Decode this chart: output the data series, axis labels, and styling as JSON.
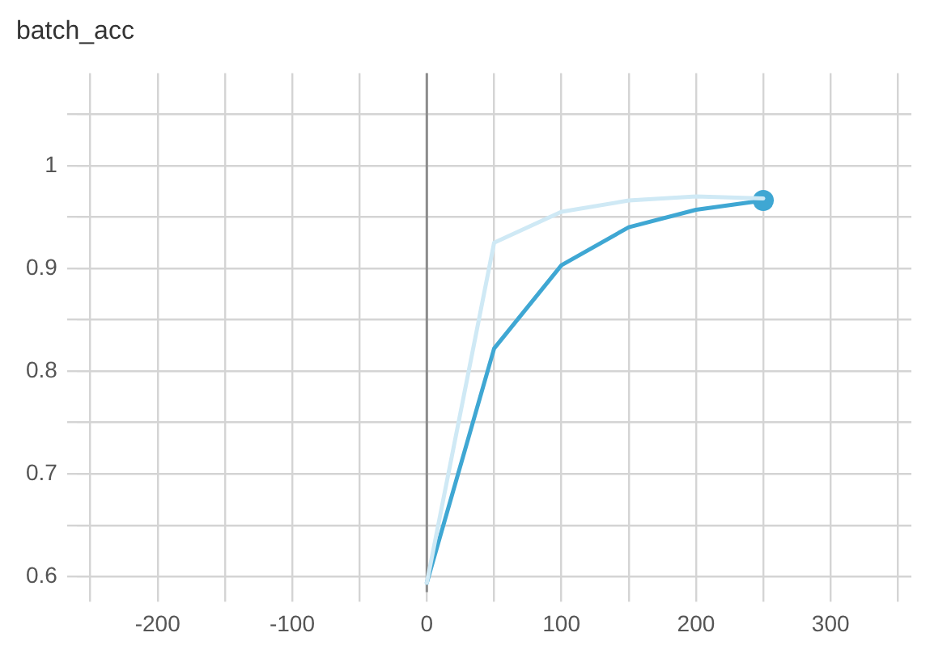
{
  "chart_data": {
    "type": "line",
    "title": "batch_acc",
    "xlim": [
      -260,
      360
    ],
    "xticks": [
      {
        "value": -250,
        "label": null
      },
      -200,
      {
        "value": -150,
        "label": null
      },
      -100,
      {
        "value": -50,
        "label": null
      },
      0,
      {
        "value": 50,
        "label": null
      },
      100,
      {
        "value": 150,
        "label": null
      },
      200,
      {
        "value": 250,
        "label": null
      },
      300,
      {
        "value": 350,
        "label": null
      }
    ],
    "ylim": [
      0.585,
      1.09
    ],
    "yticks": [
      0.6,
      {
        "value": 0.65,
        "label": null
      },
      0.7,
      {
        "value": 0.75,
        "label": null
      },
      0.8,
      {
        "value": 0.85,
        "label": null
      },
      0.9,
      {
        "value": 0.95,
        "label": null
      },
      1,
      {
        "value": 1.05,
        "label": null
      }
    ],
    "grid": true,
    "legend": false,
    "marker": "none",
    "ref_lines": [
      {
        "axis": "x",
        "value": 0,
        "color": "#8c8c8c"
      }
    ],
    "series": [
      {
        "type": "line",
        "color": "#cfe9f5",
        "x": [
          0,
          50,
          100,
          150,
          200,
          250
        ],
        "values": [
          0.594,
          0.925,
          0.955,
          0.966,
          0.97,
          0.968
        ]
      },
      {
        "type": "line",
        "color": "#3fa7d3",
        "x": [
          0,
          50,
          100,
          150,
          200,
          250
        ],
        "values": [
          0.594,
          0.822,
          0.903,
          0.94,
          0.957,
          0.966
        ]
      },
      {
        "type": "scatter",
        "color": "#3fa7d3",
        "marker": "circle",
        "x": [
          250
        ],
        "values": [
          0.966
        ]
      }
    ]
  }
}
